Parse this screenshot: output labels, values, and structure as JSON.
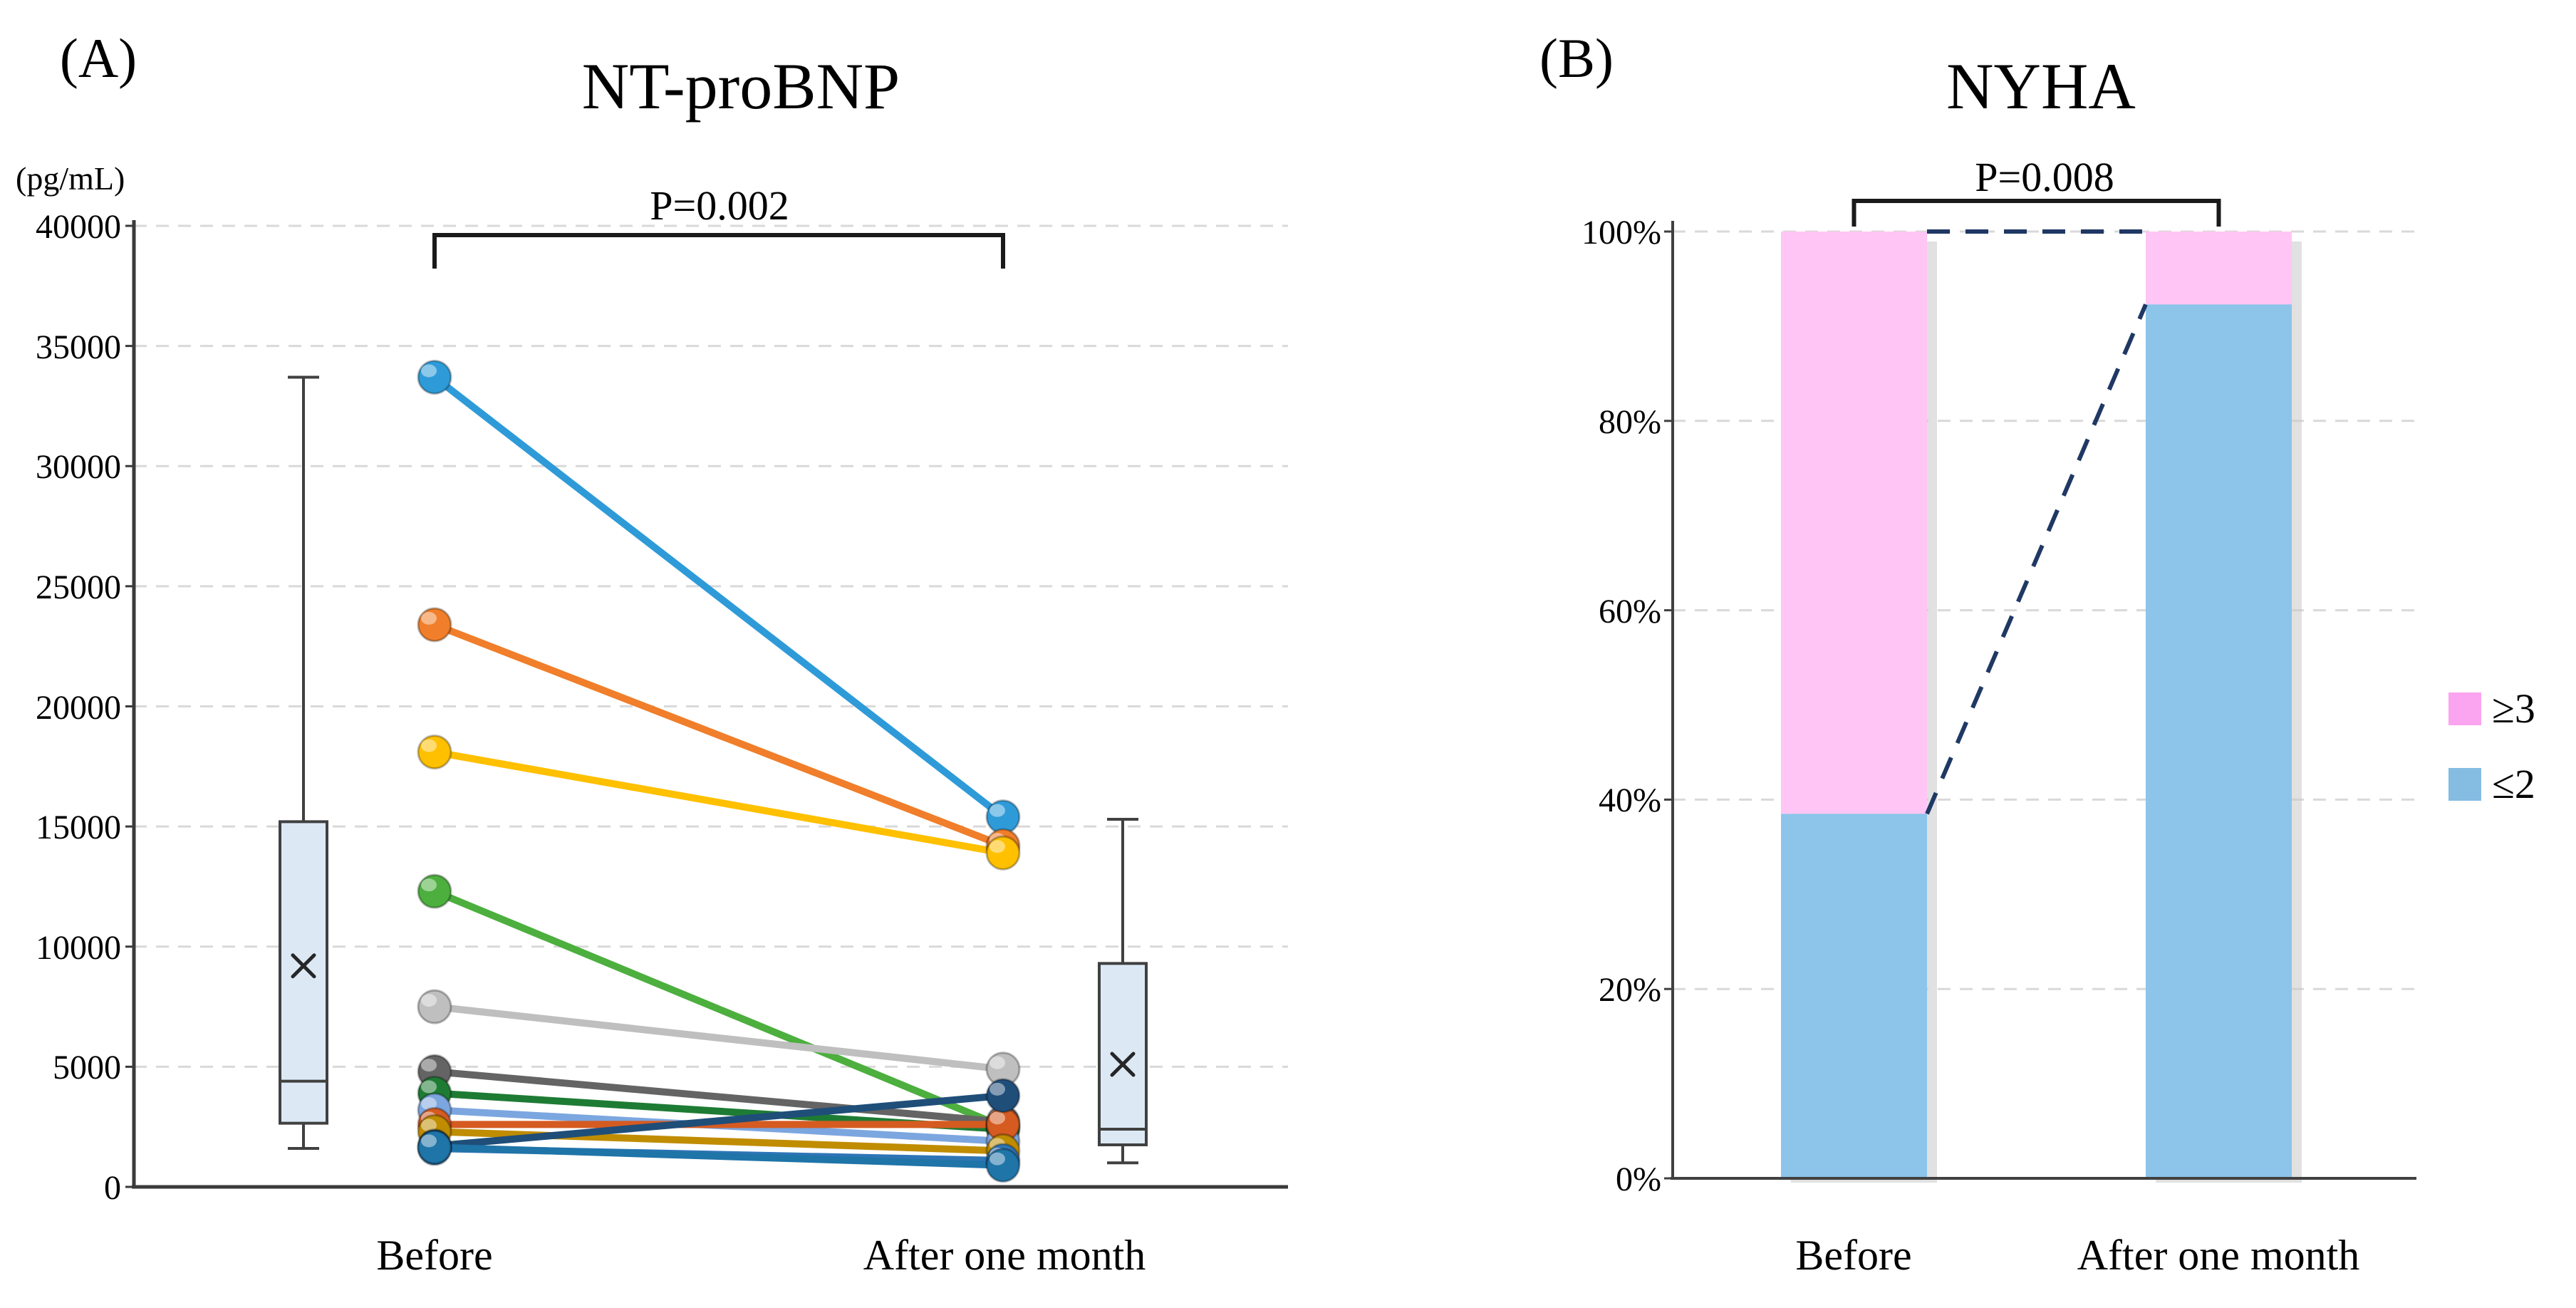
{
  "figure": {
    "panel_tags": [
      "(A)",
      "(B)"
    ],
    "background": "#ffffff"
  },
  "chart_data": [
    {
      "type": "line",
      "subtype": "paired-before-after-with-boxplots",
      "title": "NT-proBNP",
      "ylabel": "(pg/mL)",
      "p_value": "P=0.002",
      "categories": [
        "Before",
        "After one month"
      ],
      "ylim": [
        0,
        40000
      ],
      "ytick_step": 5000,
      "ytick_labels": [
        "40000",
        "35000",
        "30000",
        "25000",
        "20000",
        "15000",
        "10000",
        "5000",
        "0"
      ],
      "grid": "horizontal-dashed",
      "grid_color": "#d9d9d9",
      "series": [
        {
          "name": "patient-1",
          "color": "#2e9bd8",
          "values": [
            33700,
            15400
          ]
        },
        {
          "name": "patient-2",
          "color": "#f07e2a",
          "values": [
            23400,
            14200
          ]
        },
        {
          "name": "patient-3",
          "color": "#ffc000",
          "values": [
            18100,
            13900
          ]
        },
        {
          "name": "patient-4",
          "color": "#4caf3e",
          "values": [
            12300,
            2500
          ]
        },
        {
          "name": "patient-5",
          "color": "#bfbfbf",
          "values": [
            7500,
            4900
          ]
        },
        {
          "name": "patient-6",
          "color": "#646464",
          "values": [
            4800,
            2700
          ]
        },
        {
          "name": "patient-7",
          "color": "#1e7b34",
          "values": [
            3900,
            2400
          ]
        },
        {
          "name": "patient-8",
          "color": "#7ca6df",
          "values": [
            3200,
            1900
          ]
        },
        {
          "name": "patient-9",
          "color": "#d55b21",
          "values": [
            2600,
            2600
          ]
        },
        {
          "name": "patient-10",
          "color": "#c08c00",
          "values": [
            2300,
            1500
          ]
        },
        {
          "name": "patient-11",
          "color": "#1f4e79",
          "values": [
            1700,
            3800
          ]
        },
        {
          "name": "patient-12",
          "color": "#2e75b6",
          "values": [
            1600,
            1100
          ]
        },
        {
          "name": "patient-13",
          "color": "#1f74a8",
          "values": [
            1650,
            900
          ]
        }
      ],
      "boxplots": [
        {
          "group": "Before",
          "min": 1600,
          "q1": 2650,
          "median": 4400,
          "mean": 9200,
          "q3": 15200,
          "max": 33700
        },
        {
          "group": "After one month",
          "min": 1000,
          "q1": 1750,
          "median": 2400,
          "mean": 5100,
          "q3": 9300,
          "max": 15300
        }
      ],
      "box_fill": "#dce9f5",
      "box_stroke": "#404040"
    },
    {
      "type": "bar",
      "subtype": "stacked-100pct",
      "title": "NYHA",
      "p_value": "P=0.008",
      "categories": [
        "Before",
        "After one month"
      ],
      "ytick_labels": [
        "100%",
        "80%",
        "60%",
        "40%",
        "20%",
        "0%"
      ],
      "grid": "horizontal-dashed",
      "grid_color": "#d9d9d9",
      "series": [
        {
          "name": "≥3",
          "color": "#ffc5f5",
          "legend_color": "#fba4f0",
          "values": [
            61.5,
            7.7
          ]
        },
        {
          "name": "≤2",
          "color": "#8cc4ea",
          "legend_color": "#85bce2",
          "values": [
            38.5,
            92.3
          ]
        }
      ],
      "connector": {
        "color": "#1f3864",
        "style": "dashed",
        "from_pct": 38.5,
        "to_pct": 92.3
      },
      "legend_position": "right"
    }
  ]
}
